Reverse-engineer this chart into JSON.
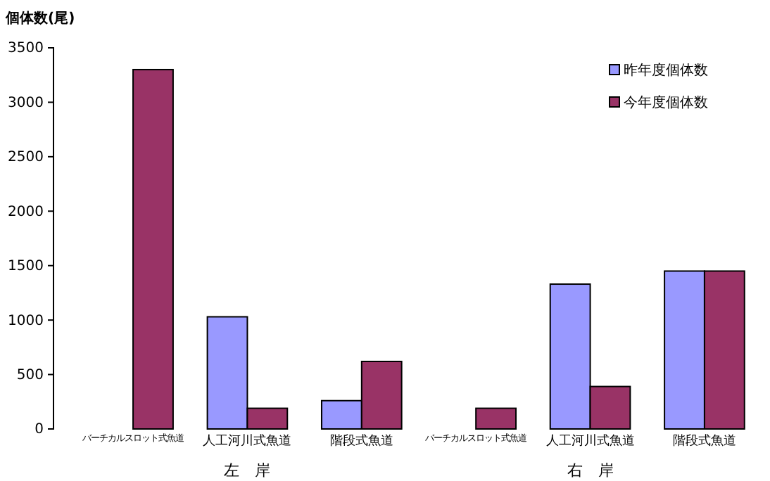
{
  "chart_data": {
    "type": "bar",
    "ylabel": "個体数(尾)",
    "categories": [
      "バーチカルスロット式魚道",
      "人工河川式魚道",
      "階段式魚道",
      "バーチカルスロット式魚道",
      "人工河川式魚道",
      "階段式魚道"
    ],
    "series": [
      {
        "name": "昨年度個体数",
        "color": "#9999ff",
        "values": [
          null,
          1030,
          260,
          null,
          1330,
          1450
        ]
      },
      {
        "name": "今年度個体数",
        "color": "#993366",
        "values": [
          3300,
          190,
          620,
          190,
          390,
          1450
        ]
      }
    ],
    "ylim": [
      0,
      3500
    ],
    "yticks": [
      0,
      500,
      1000,
      1500,
      2000,
      2500,
      3000,
      3500
    ],
    "annotations": [
      "左　岸",
      "右　岸"
    ],
    "grid": false,
    "legend": "top right"
  }
}
